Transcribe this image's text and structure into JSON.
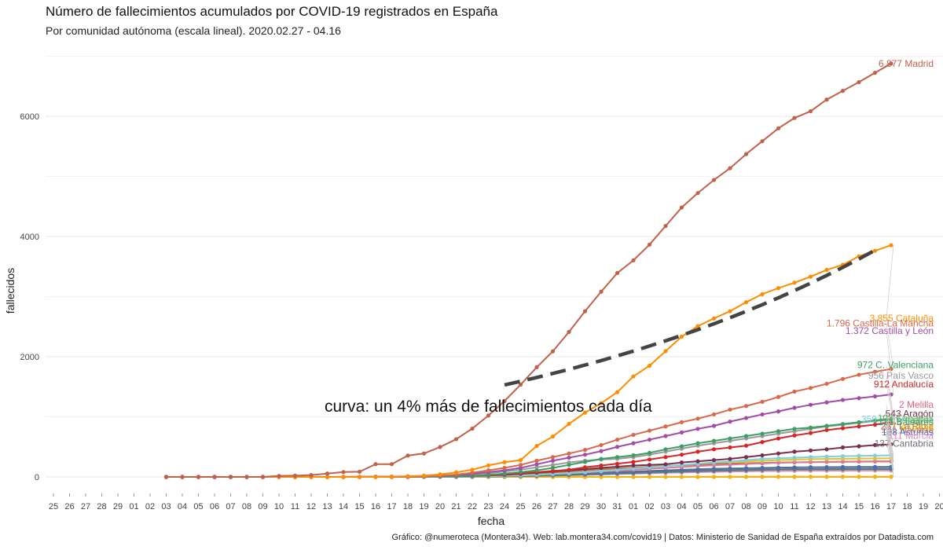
{
  "chart_data": {
    "type": "line",
    "title": "Número de fallecimientos acumulados por COVID-19 registrados en España",
    "subtitle": "Por comunidad autónoma (escala lineal). 2020.02.27 - 04.16",
    "xlabel": "fecha",
    "ylabel": "fallecidos",
    "caption": "Gráfico: @numeroteca (Montera34). Web: lab.montera34.com/covid19 | Datos: Ministerio de Sanidad de España extraídos por Datadista.com",
    "annotation": "curva: un 4% más de fallecimientos cada día",
    "x_tick_labels": [
      "25",
      "26",
      "27",
      "28",
      "29",
      "01",
      "02",
      "03",
      "04",
      "05",
      "06",
      "07",
      "08",
      "09",
      "10",
      "11",
      "12",
      "13",
      "14",
      "15",
      "16",
      "17",
      "18",
      "19",
      "20",
      "21",
      "22",
      "23",
      "24",
      "25",
      "26",
      "27",
      "28",
      "29",
      "30",
      "31",
      "01",
      "02",
      "03",
      "04",
      "05",
      "06",
      "07",
      "08",
      "09",
      "10",
      "11",
      "12",
      "13",
      "14",
      "15",
      "16",
      "17",
      "18",
      "19",
      "20"
    ],
    "ylim": [
      0,
      7000
    ],
    "y_ticks": [
      0,
      2000,
      4000,
      6000
    ],
    "y_tick_labels": [
      "0",
      "2000",
      "4000",
      "6000"
    ],
    "grid": true,
    "reference_curve": {
      "name": "4% daily growth",
      "start_index": 21,
      "start_value": 1530,
      "growth": 1.04,
      "end_index": 44,
      "color": "#444444"
    },
    "series": [
      {
        "name": "Madrid",
        "label": "6.877 Madrid",
        "color": "#c0614a",
        "label_offset": 0,
        "values": [
          0,
          0,
          0,
          0,
          0,
          0,
          0,
          16,
          21,
          31,
          56,
          81,
          86,
          213,
          213,
          355,
          390,
          498,
          628,
          804,
          1021,
          1263,
          1535,
          1825,
          2090,
          2412,
          2757,
          3082,
          3392,
          3603,
          3865,
          4175,
          4483,
          4723,
          4941,
          5136,
          5371,
          5586,
          5800,
          5972,
          6084,
          6278,
          6423,
          6568,
          6724,
          6877
        ]
      },
      {
        "name": "Cataluña",
        "label": "3.855 Cataluña",
        "color": "#ff8c00",
        "label_offset": -93,
        "values": [
          0,
          0,
          0,
          0,
          0,
          0,
          0,
          0,
          0,
          0,
          0,
          0,
          0,
          0,
          3,
          12,
          21,
          43,
          75,
          120,
          191,
          245,
          279,
          516,
          672,
          882,
          1070,
          1226,
          1410,
          1672,
          1850,
          2093,
          2335,
          2508,
          2637,
          2757,
          2907,
          3041,
          3141,
          3231,
          3332,
          3444,
          3530,
          3671,
          3762,
          3855
        ]
      },
      {
        "name": "Castilla y León",
        "label": "1.372 Castilla y León",
        "color": "#a24ca6",
        "label_offset": 81,
        "values": [
          0,
          0,
          0,
          0,
          0,
          0,
          0,
          0,
          0,
          0,
          0,
          0,
          1,
          2,
          3,
          5,
          10,
          20,
          30,
          50,
          80,
          110,
          150,
          210,
          270,
          320,
          370,
          430,
          500,
          560,
          620,
          680,
          740,
          800,
          850,
          920,
          980,
          1040,
          1090,
          1150,
          1200,
          1240,
          1280,
          1310,
          1340,
          1372
        ]
      },
      {
        "name": "Castilla-La Mancha",
        "label": "1.796 Castilla-La Mancha",
        "color": "#d9694b",
        "label_offset": 58,
        "values": [
          0,
          0,
          0,
          0,
          0,
          0,
          0,
          0,
          0,
          0,
          0,
          0,
          1,
          2,
          3,
          5,
          10,
          20,
          40,
          70,
          110,
          150,
          200,
          270,
          330,
          390,
          450,
          530,
          620,
          700,
          770,
          840,
          910,
          970,
          1040,
          1120,
          1180,
          1250,
          1330,
          1420,
          1480,
          1550,
          1630,
          1700,
          1750,
          1796
        ]
      },
      {
        "name": "C. Valenciana",
        "label": "972 C. Valenciana",
        "color": "#3c9e63",
        "label_offset": 68,
        "values": [
          0,
          0,
          0,
          0,
          0,
          0,
          0,
          0,
          0,
          0,
          0,
          0,
          0,
          1,
          2,
          3,
          5,
          8,
          12,
          20,
          35,
          55,
          80,
          110,
          150,
          200,
          250,
          300,
          330,
          360,
          400,
          460,
          510,
          560,
          600,
          640,
          680,
          720,
          760,
          800,
          820,
          850,
          880,
          910,
          940,
          972
        ]
      },
      {
        "name": "País Vasco",
        "label": "956 País Vasco",
        "color": "#9a9a9a",
        "label_offset": 56,
        "values": [
          0,
          0,
          0,
          0,
          0,
          0,
          0,
          0,
          0,
          0,
          0,
          1,
          2,
          4,
          6,
          10,
          15,
          20,
          30,
          45,
          60,
          90,
          120,
          160,
          200,
          240,
          270,
          290,
          300,
          330,
          370,
          420,
          470,
          520,
          560,
          600,
          640,
          680,
          720,
          760,
          800,
          840,
          870,
          900,
          930,
          956
        ]
      },
      {
        "name": "Andalucía",
        "label": "912 Andalucía",
        "color": "#d92424",
        "label_offset": 48,
        "values": [
          0,
          0,
          0,
          0,
          0,
          0,
          0,
          0,
          0,
          0,
          0,
          0,
          1,
          2,
          3,
          5,
          8,
          10,
          15,
          20,
          30,
          45,
          60,
          80,
          100,
          120,
          160,
          190,
          220,
          250,
          290,
          330,
          370,
          420,
          460,
          490,
          520,
          580,
          640,
          690,
          730,
          780,
          810,
          840,
          870,
          912
        ]
      },
      {
        "name": "Aragón",
        "label": "543 Aragón",
        "color": "#7a2d4e",
        "label_offset": 39,
        "values": [
          0,
          0,
          0,
          0,
          0,
          0,
          0,
          0,
          0,
          0,
          0,
          0,
          0,
          0,
          1,
          2,
          4,
          6,
          10,
          15,
          25,
          35,
          50,
          70,
          90,
          110,
          130,
          150,
          170,
          190,
          200,
          210,
          240,
          260,
          280,
          300,
          330,
          360,
          390,
          420,
          440,
          460,
          490,
          510,
          530,
          543
        ]
      },
      {
        "name": "Galicia",
        "label": "310 Galicia",
        "color": "#e6c229",
        "label_offset": 47,
        "values": [
          0,
          0,
          0,
          0,
          0,
          0,
          0,
          0,
          0,
          0,
          0,
          0,
          0,
          0,
          1,
          1,
          2,
          3,
          5,
          8,
          12,
          18,
          25,
          35,
          50,
          60,
          80,
          100,
          120,
          140,
          160,
          180,
          200,
          220,
          240,
          250,
          260,
          270,
          280,
          290,
          295,
          300,
          303,
          306,
          308,
          310
        ]
      },
      {
        "name": "Extremadura",
        "label": "359 Extremadura",
        "color": "#7fcde0",
        "label_offset": 46,
        "values": [
          0,
          0,
          0,
          0,
          0,
          0,
          0,
          0,
          0,
          0,
          0,
          0,
          0,
          0,
          0,
          0,
          1,
          2,
          4,
          8,
          14,
          20,
          28,
          38,
          50,
          65,
          80,
          100,
          120,
          140,
          160,
          180,
          200,
          220,
          240,
          260,
          280,
          300,
          310,
          320,
          330,
          338,
          344,
          350,
          355,
          359
        ]
      },
      {
        "name": "Navarra",
        "label": "261 Navarra",
        "color": "#d97a9a",
        "label_offset": 40,
        "values": [
          0,
          0,
          0,
          0,
          0,
          0,
          0,
          0,
          0,
          0,
          0,
          0,
          0,
          0,
          0,
          1,
          2,
          4,
          6,
          10,
          14,
          20,
          28,
          38,
          50,
          62,
          75,
          90,
          105,
          120,
          135,
          150,
          165,
          180,
          195,
          205,
          215,
          225,
          235,
          240,
          245,
          250,
          253,
          256,
          259,
          261
        ]
      },
      {
        "name": "La Rioja",
        "label": "257 La Rioja",
        "color": "#b8732a",
        "label_offset": 45,
        "values": [
          0,
          0,
          0,
          0,
          0,
          0,
          0,
          0,
          0,
          0,
          0,
          1,
          2,
          3,
          4,
          6,
          8,
          10,
          14,
          20,
          28,
          38,
          50,
          62,
          75,
          90,
          110,
          125,
          140,
          155,
          170,
          185,
          195,
          205,
          215,
          222,
          228,
          233,
          238,
          243,
          247,
          250,
          252,
          254,
          256,
          257
        ]
      },
      {
        "name": "Asturias",
        "label": "168 Asturias",
        "color": "#4a6fa5",
        "label_offset": 44,
        "values": [
          0,
          0,
          0,
          0,
          0,
          0,
          0,
          0,
          0,
          0,
          0,
          0,
          0,
          0,
          0,
          1,
          2,
          3,
          5,
          8,
          12,
          16,
          22,
          30,
          40,
          50,
          60,
          70,
          80,
          90,
          100,
          110,
          120,
          128,
          135,
          141,
          146,
          151,
          155,
          159,
          162,
          164,
          165,
          166,
          167,
          168
        ]
      },
      {
        "name": "Cantabria",
        "label": "137 Cantabria",
        "color": "#6e6e7a",
        "label_offset": 32,
        "values": [
          0,
          0,
          0,
          0,
          0,
          0,
          0,
          0,
          0,
          0,
          0,
          0,
          0,
          0,
          0,
          0,
          1,
          2,
          3,
          5,
          8,
          12,
          16,
          22,
          30,
          38,
          46,
          55,
          64,
          73,
          82,
          90,
          98,
          105,
          111,
          116,
          120,
          124,
          127,
          130,
          132,
          134,
          135,
          136,
          137,
          137
        ]
      },
      {
        "name": "Baleares",
        "label": "131 Baleares",
        "color": "#2a9a8f",
        "label_offset": 60,
        "values": [
          0,
          0,
          0,
          0,
          0,
          0,
          0,
          0,
          0,
          0,
          0,
          0,
          0,
          0,
          0,
          0,
          1,
          2,
          3,
          5,
          8,
          11,
          15,
          20,
          26,
          33,
          40,
          48,
          56,
          64,
          72,
          80,
          88,
          95,
          102,
          108,
          113,
          118,
          122,
          125,
          127,
          128,
          129,
          130,
          131,
          131
        ]
      },
      {
        "name": "Murcia",
        "label": "111 Murcia",
        "color": "#e089c2",
        "label_offset": 44,
        "values": [
          0,
          0,
          0,
          0,
          0,
          0,
          0,
          0,
          0,
          0,
          0,
          0,
          0,
          0,
          0,
          0,
          1,
          2,
          3,
          4,
          6,
          9,
          12,
          16,
          21,
          27,
          33,
          40,
          47,
          54,
          61,
          68,
          74,
          80,
          85,
          90,
          94,
          98,
          101,
          104,
          106,
          108,
          109,
          110,
          111,
          111
        ]
      },
      {
        "name": "Canarias",
        "label": "107 Canarias",
        "color": "#6fae4a",
        "label_offset": 67,
        "values": [
          0,
          0,
          0,
          0,
          0,
          0,
          0,
          0,
          0,
          0,
          0,
          0,
          0,
          1,
          2,
          3,
          4,
          5,
          6,
          8,
          10,
          14,
          18,
          23,
          28,
          34,
          40,
          47,
          54,
          61,
          67,
          73,
          79,
          84,
          88,
          92,
          95,
          98,
          100,
          102,
          103,
          104,
          105,
          106,
          107,
          107
        ]
      },
      {
        "name": "Ceuta",
        "label": "4 Ceuta",
        "color": "#f2b705",
        "label_offset": 63,
        "values": [
          0,
          0,
          0,
          0,
          0,
          0,
          0,
          0,
          0,
          0,
          0,
          0,
          0,
          0,
          0,
          0,
          0,
          0,
          0,
          0,
          0,
          0,
          0,
          0,
          0,
          0,
          0,
          0,
          0,
          1,
          1,
          1,
          2,
          2,
          2,
          2,
          3,
          3,
          3,
          3,
          4,
          4,
          4,
          4,
          4,
          4
        ]
      },
      {
        "name": "Melilla",
        "label": "2 Melilla",
        "color": "#e8627c",
        "label_offset": 92,
        "values": [
          0,
          0,
          0,
          0,
          0,
          0,
          0,
          0,
          0,
          0,
          0,
          0,
          0,
          0,
          0,
          0,
          0,
          0,
          0,
          0,
          0,
          0,
          0,
          0,
          0,
          0,
          0,
          0,
          0,
          0,
          0,
          1,
          1,
          1,
          1,
          1,
          1,
          1,
          2,
          2,
          2,
          2,
          2,
          2,
          2,
          2
        ]
      }
    ]
  }
}
